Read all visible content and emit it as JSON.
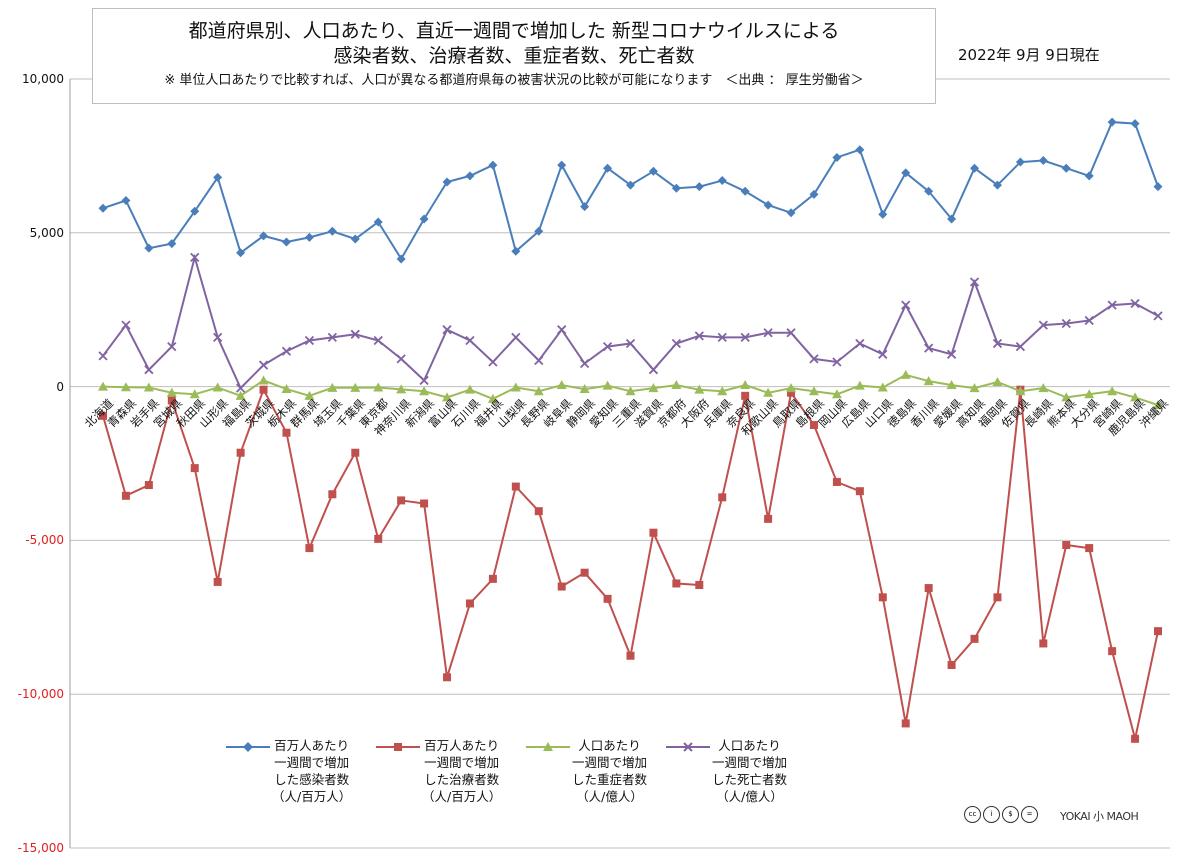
{
  "title_lines": [
    "都道府県別、人口あたり、直近一週間で増加した 新型コロナウイルスによる",
    "感染者数、治療者数、重症者数、死亡者数"
  ],
  "subtitle": "※ 単位人口あたりで比較すれば、人口が異なる都道府県毎の被害状況の比較が可能になります　＜出典 ： 厚生労働省＞",
  "date_label": "2022年 9月 9日現在",
  "credit_icons": [
    "cc-icon",
    "by-icon",
    "nc-icon",
    "nd-icon"
  ],
  "brand": "YOKAI 小 MAOH",
  "chart_data": {
    "type": "line",
    "ylim": [
      -15000,
      10000
    ],
    "yticks": [
      10000,
      5000,
      0,
      -5000,
      -10000,
      -15000
    ],
    "ytick_labels": [
      "10,000",
      "5,000",
      "0",
      "-5,000",
      "-10,000",
      "-15,000"
    ],
    "categories": [
      "北海道",
      "青森県",
      "岩手県",
      "宮城県",
      "秋田県",
      "山形県",
      "福島県",
      "茨城県",
      "栃木県",
      "群馬県",
      "埼玉県",
      "千葉県",
      "東京都",
      "神奈川県",
      "新潟県",
      "富山県",
      "石川県",
      "福井県",
      "山梨県",
      "長野県",
      "岐阜県",
      "静岡県",
      "愛知県",
      "三重県",
      "滋賀県",
      "京都府",
      "大阪府",
      "兵庫県",
      "奈良県",
      "和歌山県",
      "鳥取県",
      "島根県",
      "岡山県",
      "広島県",
      "山口県",
      "徳島県",
      "香川県",
      "愛媛県",
      "高知県",
      "福岡県",
      "佐賀県",
      "長崎県",
      "熊本県",
      "大分県",
      "宮崎県",
      "鹿児島県",
      "沖縄県"
    ],
    "series": [
      {
        "name": "百万人あたり\n一週間で増加\nした感染者数\n（人/百万人）",
        "color": "#4a7ebb",
        "marker": "diamond",
        "values": [
          5800,
          6050,
          4500,
          4650,
          5700,
          6800,
          4350,
          4900,
          4700,
          4850,
          5050,
          4800,
          5350,
          4150,
          5450,
          6650,
          6850,
          7200,
          4400,
          5050,
          7200,
          5850,
          7100,
          6550,
          7000,
          6450,
          6500,
          6700,
          6350,
          5900,
          5650,
          6250,
          7450,
          7700,
          5600,
          6950,
          6350,
          5450,
          7100,
          6550,
          7300,
          7350,
          7100,
          6850,
          8600,
          8550,
          6500
        ]
      },
      {
        "name": "百万人あたり\n一週間で増加\nした治療者数\n（人/百万人）",
        "color": "#c0504d",
        "marker": "square",
        "values": [
          -950,
          -3550,
          -3200,
          -450,
          -2650,
          -6350,
          -2150,
          -100,
          -1500,
          -5250,
          -3500,
          -2150,
          -4950,
          -3700,
          -3800,
          -9450,
          -7050,
          -6250,
          -3250,
          -4050,
          -6500,
          -6050,
          -6900,
          -8750,
          -4750,
          -6400,
          -6450,
          -3600,
          -300,
          -4300,
          -200,
          -1250,
          -3100,
          -3400,
          -6850,
          -10950,
          -6550,
          -9050,
          -8200,
          -6850,
          -100,
          -8350,
          -5150,
          -5250,
          -8600,
          -11450,
          -7950
        ]
      },
      {
        "name": "人口あたり\n一週間で増加\nした重症者数\n（人/億人）",
        "color": "#9bbb59",
        "marker": "triangle",
        "values": [
          0,
          -20,
          -30,
          -200,
          -250,
          -30,
          -300,
          200,
          -80,
          -300,
          -40,
          -40,
          -30,
          -90,
          -150,
          -350,
          -100,
          -400,
          -30,
          -150,
          50,
          -80,
          30,
          -150,
          -50,
          50,
          -100,
          -150,
          50,
          -200,
          -50,
          -150,
          -250,
          30,
          -30,
          380,
          180,
          50,
          -50,
          150,
          -150,
          -50,
          -350,
          -250,
          -150,
          -350,
          -600
        ]
      },
      {
        "name": "人口あたり\n一週間で増加\nした死亡者数\n（人/億人）",
        "color": "#8064a2",
        "marker": "x",
        "values": [
          1000,
          2000,
          550,
          1300,
          4200,
          1600,
          -50,
          700,
          1150,
          1500,
          1600,
          1700,
          1500,
          900,
          200,
          1850,
          1500,
          800,
          1600,
          850,
          1850,
          750,
          1300,
          1400,
          550,
          1400,
          1650,
          1600,
          1600,
          1750,
          1750,
          900,
          800,
          1400,
          1050,
          2650,
          1250,
          1050,
          3400,
          1400,
          1300,
          2000,
          2050,
          2150,
          2650,
          2700,
          2300
        ]
      }
    ]
  }
}
